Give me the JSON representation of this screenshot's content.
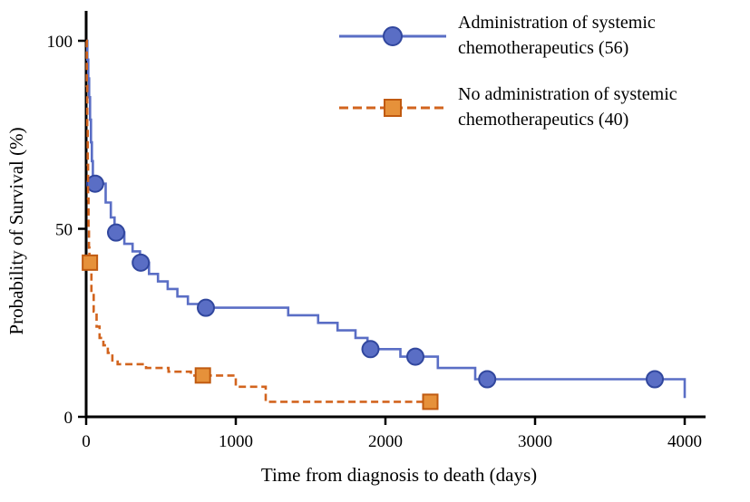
{
  "chart_data": {
    "type": "line",
    "subtype": "kaplan-meier-step-survival",
    "title": "",
    "xlabel": "Time from diagnosis to death (days)",
    "ylabel": "Probability of Survival (%)",
    "xlim": [
      0,
      4000
    ],
    "ylim": [
      0,
      100
    ],
    "xticks": [
      0,
      1000,
      2000,
      3000,
      4000
    ],
    "yticks": [
      0,
      50,
      100
    ],
    "grid": false,
    "legend_position": "top-right",
    "background": "#ffffff",
    "axis_color": "#000000",
    "series": [
      {
        "name": "Administration of systemic chemotherapeutics (56)",
        "n": 56,
        "color": "#5a6ec5",
        "line_style": "solid",
        "marker": "circle",
        "marker_fill": "#5a6ec5",
        "marker_edge": "#31479e",
        "steps": [
          [
            0,
            100
          ],
          [
            8,
            95
          ],
          [
            14,
            90
          ],
          [
            20,
            85
          ],
          [
            26,
            79
          ],
          [
            32,
            73
          ],
          [
            38,
            68
          ],
          [
            45,
            62
          ],
          [
            130,
            57
          ],
          [
            165,
            53
          ],
          [
            190,
            49
          ],
          [
            255,
            46
          ],
          [
            310,
            44
          ],
          [
            360,
            41
          ],
          [
            420,
            38
          ],
          [
            480,
            36
          ],
          [
            545,
            34
          ],
          [
            610,
            32
          ],
          [
            680,
            30
          ],
          [
            750,
            29
          ],
          [
            1350,
            27
          ],
          [
            1550,
            25
          ],
          [
            1680,
            23
          ],
          [
            1800,
            21
          ],
          [
            1880,
            18
          ],
          [
            2100,
            16
          ],
          [
            2350,
            13
          ],
          [
            2600,
            10
          ],
          [
            4000,
            10
          ],
          [
            4000,
            5
          ]
        ],
        "markers": [
          [
            60,
            62
          ],
          [
            200,
            49
          ],
          [
            365,
            41
          ],
          [
            800,
            29
          ],
          [
            1900,
            18
          ],
          [
            2200,
            16
          ],
          [
            2680,
            10
          ],
          [
            3800,
            10
          ]
        ]
      },
      {
        "name": "No administration of systemic chemotherapeutics (40)",
        "n": 40,
        "color": "#d2641e",
        "line_style": "dashed",
        "marker": "square",
        "marker_fill": "#e6913a",
        "marker_edge": "#c05a10",
        "steps": [
          [
            0,
            100
          ],
          [
            4,
            88
          ],
          [
            7,
            77
          ],
          [
            10,
            67
          ],
          [
            13,
            58
          ],
          [
            16,
            50
          ],
          [
            19,
            45
          ],
          [
            22,
            41
          ],
          [
            35,
            33
          ],
          [
            50,
            28
          ],
          [
            70,
            24
          ],
          [
            90,
            21
          ],
          [
            115,
            19
          ],
          [
            145,
            17
          ],
          [
            175,
            15
          ],
          [
            210,
            14
          ],
          [
            400,
            13
          ],
          [
            550,
            12
          ],
          [
            700,
            11
          ],
          [
            1000,
            8
          ],
          [
            1200,
            4
          ],
          [
            2350,
            4
          ]
        ],
        "markers": [
          [
            25,
            41
          ],
          [
            780,
            11
          ],
          [
            2300,
            4
          ]
        ]
      }
    ]
  }
}
